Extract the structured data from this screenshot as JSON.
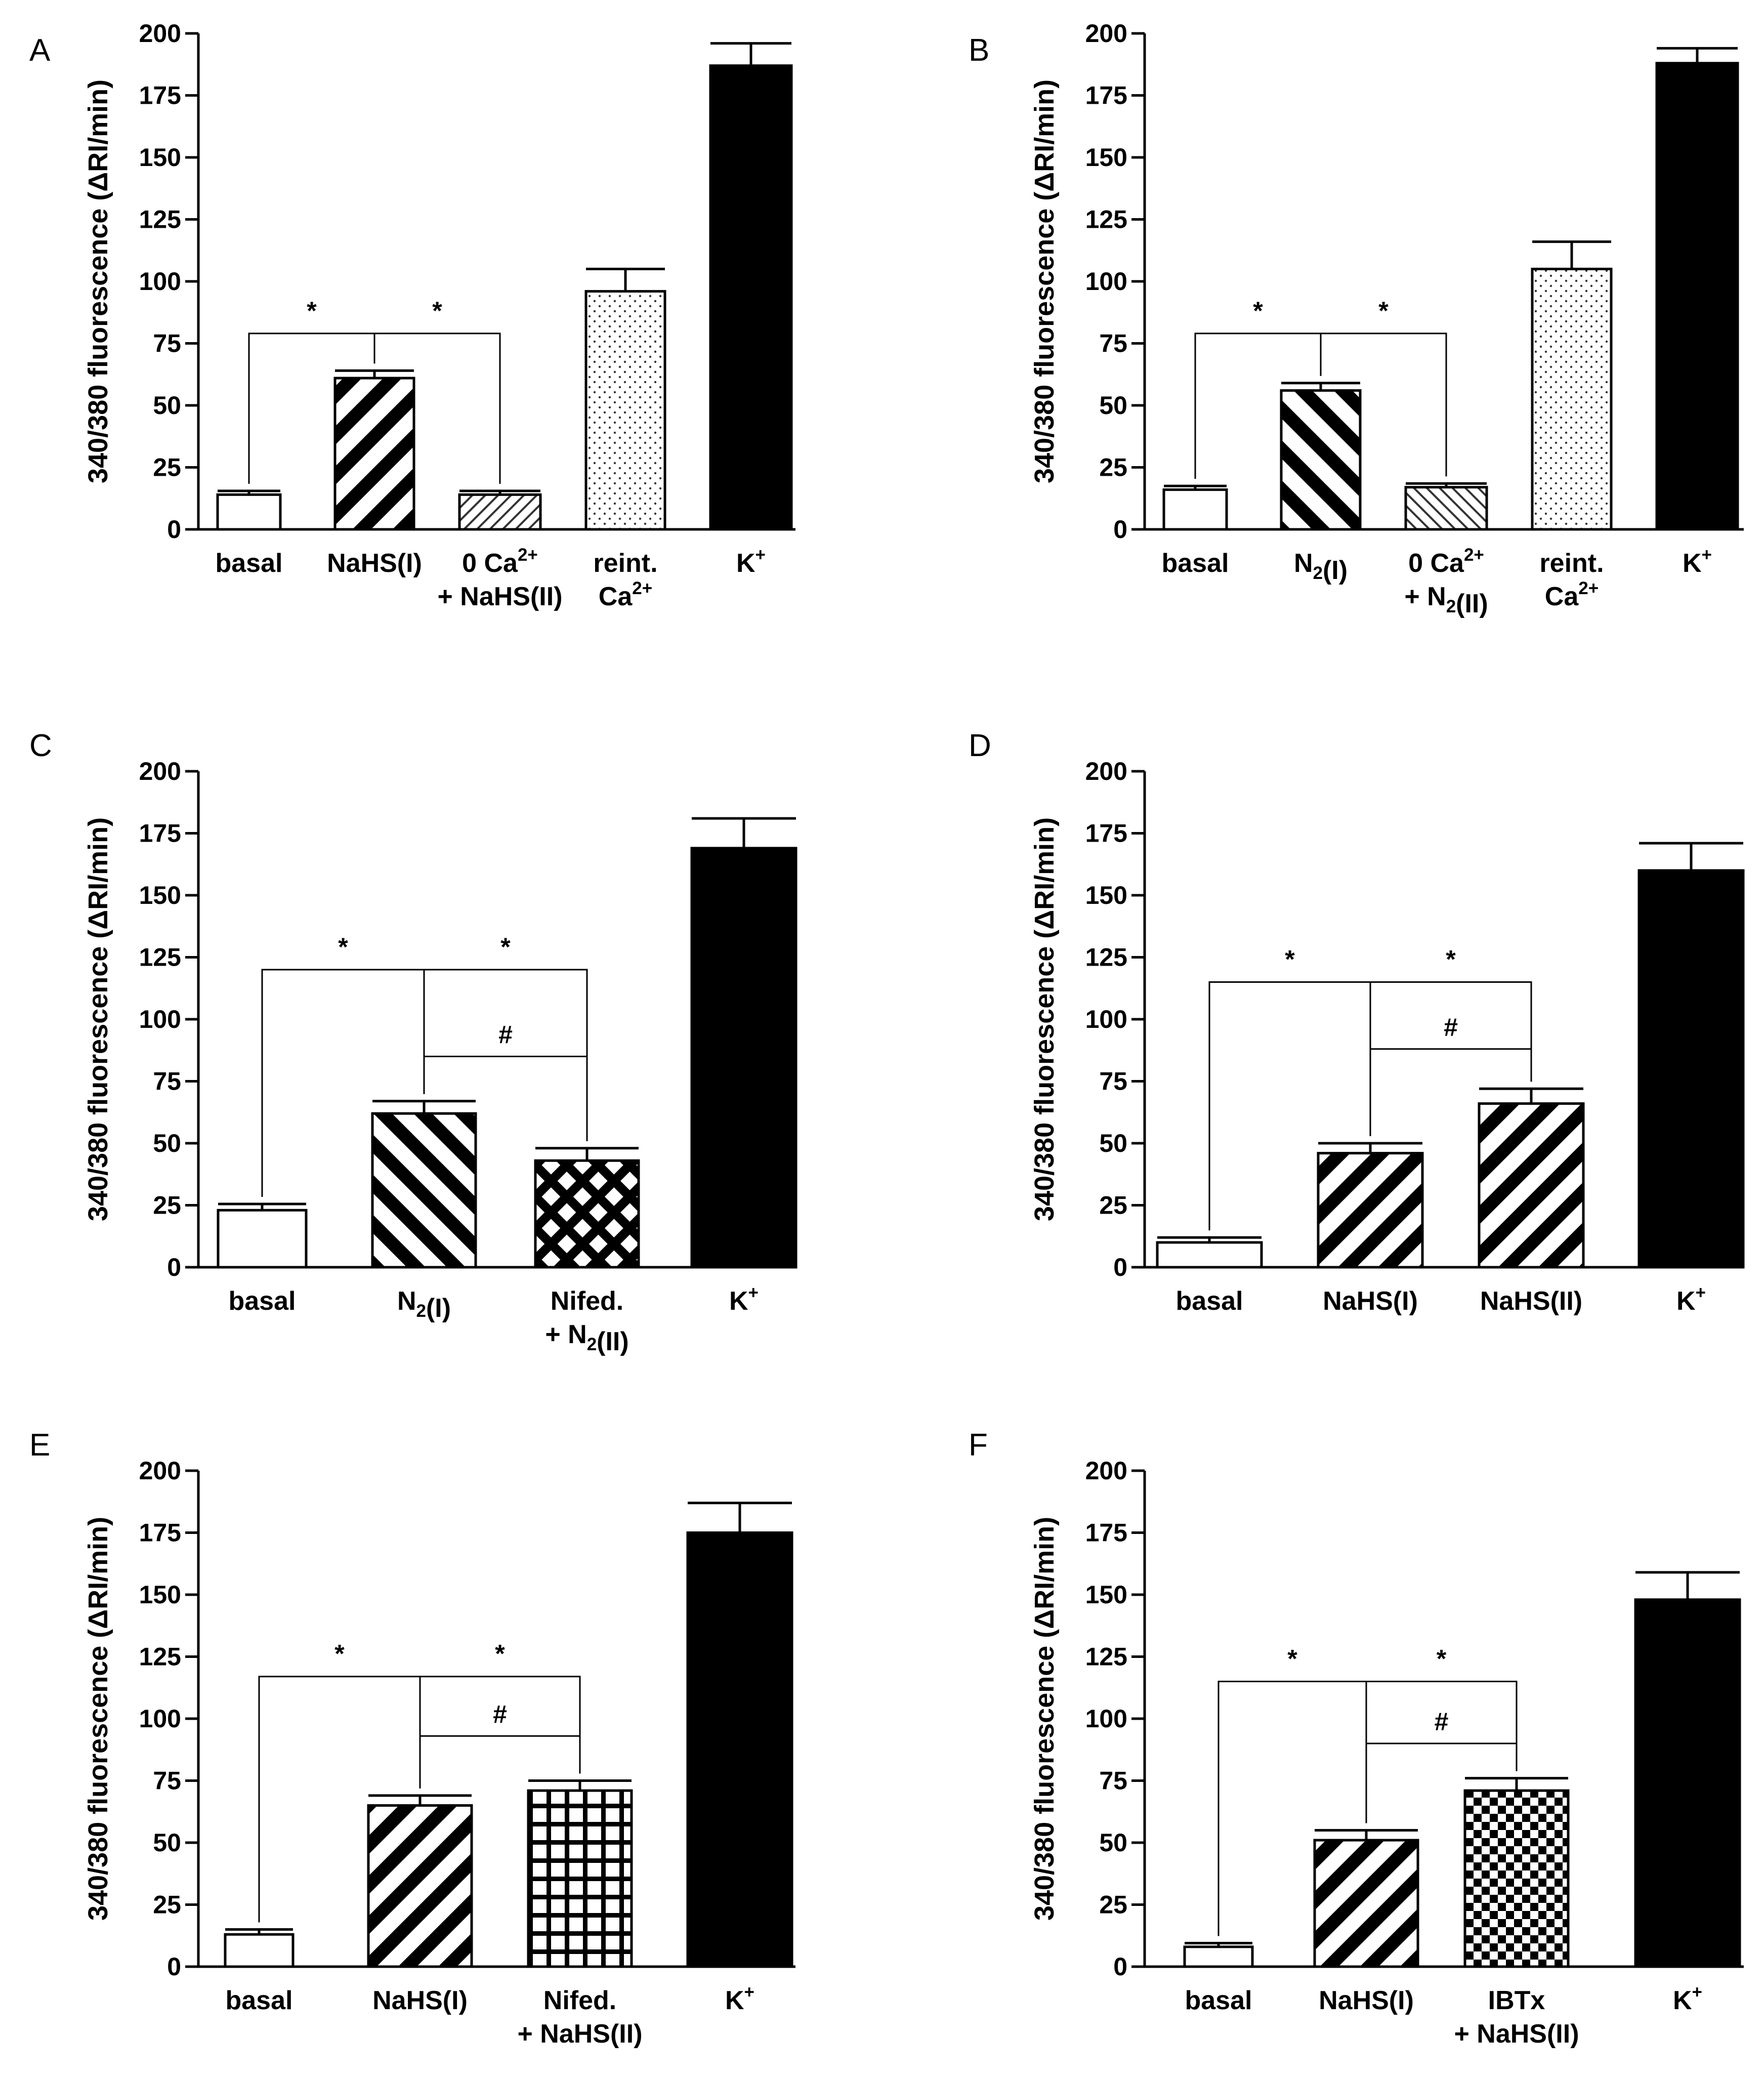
{
  "chart_data": [
    {
      "panel": "A",
      "type": "bar",
      "ylabel": "340/380 fluorescence (ΔRI/min)",
      "ylim": [
        0,
        200
      ],
      "yticks": [
        0,
        25,
        50,
        75,
        100,
        125,
        150,
        175,
        200
      ],
      "categories": [
        {
          "lines": [
            [
              {
                "t": "basal"
              }
            ]
          ]
        },
        {
          "lines": [
            [
              {
                "t": "NaHS(I)"
              }
            ]
          ]
        },
        {
          "lines": [
            [
              {
                "t": "0 Ca"
              },
              {
                "t": "2+",
                "sup": true
              }
            ],
            [
              {
                "t": "+ NaHS(II)"
              }
            ]
          ]
        },
        {
          "lines": [
            [
              {
                "t": "reint."
              }
            ],
            [
              {
                "t": "Ca"
              },
              {
                "t": "2+",
                "sup": true
              }
            ]
          ]
        },
        {
          "lines": [
            [
              {
                "t": "K"
              },
              {
                "t": "+",
                "sup": true
              }
            ]
          ]
        }
      ],
      "values": [
        14,
        61,
        14,
        96,
        187
      ],
      "errors": [
        1.5,
        3,
        1.5,
        9,
        9
      ],
      "patterns": [
        "white",
        "diagBoldBack",
        "diagFineBack",
        "dots",
        "black"
      ],
      "brackets": [
        {
          "from": 0,
          "to": 2,
          "stem": 1,
          "y": 79,
          "labels": [
            "*",
            "*"
          ]
        }
      ]
    },
    {
      "panel": "B",
      "type": "bar",
      "ylabel": "340/380 fluorescence (ΔRI/min)",
      "ylim": [
        0,
        200
      ],
      "yticks": [
        0,
        25,
        50,
        75,
        100,
        125,
        150,
        175,
        200
      ],
      "categories": [
        {
          "lines": [
            [
              {
                "t": "basal"
              }
            ]
          ]
        },
        {
          "lines": [
            [
              {
                "t": "N"
              },
              {
                "t": "2",
                "sub": true
              },
              {
                "t": "(I)"
              }
            ]
          ]
        },
        {
          "lines": [
            [
              {
                "t": "0 Ca"
              },
              {
                "t": "2+",
                "sup": true
              }
            ],
            [
              {
                "t": "+ N"
              },
              {
                "t": "2",
                "sub": true
              },
              {
                "t": "(II)"
              }
            ]
          ]
        },
        {
          "lines": [
            [
              {
                "t": "reint."
              }
            ],
            [
              {
                "t": "Ca"
              },
              {
                "t": "2+",
                "sup": true
              }
            ]
          ]
        },
        {
          "lines": [
            [
              {
                "t": "K"
              },
              {
                "t": "+",
                "sup": true
              }
            ]
          ]
        }
      ],
      "values": [
        16,
        56,
        17,
        105,
        188
      ],
      "errors": [
        1.5,
        3,
        1.5,
        11,
        6
      ],
      "patterns": [
        "white",
        "diagBoldFwd",
        "diagFineFwd",
        "dots",
        "black"
      ],
      "brackets": [
        {
          "from": 0,
          "to": 2,
          "stem": 1,
          "y": 79,
          "labels": [
            "*",
            "*"
          ]
        }
      ]
    },
    {
      "panel": "C",
      "type": "bar",
      "ylabel": "340/380 fluorescence (ΔRI/min)",
      "ylim": [
        0,
        200
      ],
      "yticks": [
        0,
        25,
        50,
        75,
        100,
        125,
        150,
        175,
        200
      ],
      "categories": [
        {
          "lines": [
            [
              {
                "t": "basal"
              }
            ]
          ]
        },
        {
          "lines": [
            [
              {
                "t": "N"
              },
              {
                "t": "2",
                "sub": true
              },
              {
                "t": "(I)"
              }
            ]
          ]
        },
        {
          "lines": [
            [
              {
                "t": "Nifed."
              }
            ],
            [
              {
                "t": "+ N"
              },
              {
                "t": "2",
                "sub": true
              },
              {
                "t": "(II)"
              }
            ]
          ]
        },
        {
          "lines": [
            [
              {
                "t": "K"
              },
              {
                "t": "+",
                "sup": true
              }
            ]
          ]
        }
      ],
      "values": [
        23,
        62,
        43,
        169
      ],
      "errors": [
        2.5,
        5,
        5,
        12
      ],
      "patterns": [
        "white",
        "diagBoldFwd",
        "crossHatch",
        "black"
      ],
      "brackets": [
        {
          "from": 0,
          "to": 2,
          "stem": 1,
          "y": 120,
          "labels": [
            "*",
            "*"
          ]
        },
        {
          "from": 1,
          "to": 2,
          "y": 85,
          "labels": [
            "#"
          ]
        }
      ]
    },
    {
      "panel": "D",
      "type": "bar",
      "ylabel": "340/380 fluorescence (ΔRI/min)",
      "ylim": [
        0,
        200
      ],
      "yticks": [
        0,
        25,
        50,
        75,
        100,
        125,
        150,
        175,
        200
      ],
      "categories": [
        {
          "lines": [
            [
              {
                "t": "basal"
              }
            ]
          ]
        },
        {
          "lines": [
            [
              {
                "t": "NaHS(I)"
              }
            ]
          ]
        },
        {
          "lines": [
            [
              {
                "t": "NaHS(II)"
              }
            ]
          ]
        },
        {
          "lines": [
            [
              {
                "t": "K"
              },
              {
                "t": "+",
                "sup": true
              }
            ]
          ]
        }
      ],
      "values": [
        10,
        46,
        66,
        160
      ],
      "errors": [
        2,
        4,
        6,
        11
      ],
      "patterns": [
        "white",
        "diagBoldBack",
        "diagBoldBack",
        "black"
      ],
      "brackets": [
        {
          "from": 0,
          "to": 2,
          "stem": 1,
          "y": 115,
          "labels": [
            "*",
            "*"
          ]
        },
        {
          "from": 1,
          "to": 2,
          "y": 88,
          "labels": [
            "#"
          ]
        }
      ]
    },
    {
      "panel": "E",
      "type": "bar",
      "ylabel": "340/380 fluorescence (ΔRI/min)",
      "ylim": [
        0,
        200
      ],
      "yticks": [
        0,
        25,
        50,
        75,
        100,
        125,
        150,
        175,
        200
      ],
      "categories": [
        {
          "lines": [
            [
              {
                "t": "basal"
              }
            ]
          ]
        },
        {
          "lines": [
            [
              {
                "t": "NaHS(I)"
              }
            ]
          ]
        },
        {
          "lines": [
            [
              {
                "t": "Nifed."
              }
            ],
            [
              {
                "t": "+ NaHS(II)"
              }
            ]
          ]
        },
        {
          "lines": [
            [
              {
                "t": "K"
              },
              {
                "t": "+",
                "sup": true
              }
            ]
          ]
        }
      ],
      "values": [
        13,
        65,
        71,
        175
      ],
      "errors": [
        2,
        4,
        4,
        12
      ],
      "patterns": [
        "white",
        "diagBoldBack",
        "grid",
        "black"
      ],
      "brackets": [
        {
          "from": 0,
          "to": 2,
          "stem": 1,
          "y": 117,
          "labels": [
            "*",
            "*"
          ]
        },
        {
          "from": 1,
          "to": 2,
          "y": 93,
          "labels": [
            "#"
          ]
        }
      ]
    },
    {
      "panel": "F",
      "type": "bar",
      "ylabel": "340/380 fluorescence (ΔRI/min)",
      "ylim": [
        0,
        200
      ],
      "yticks": [
        0,
        25,
        50,
        75,
        100,
        125,
        150,
        175,
        200
      ],
      "categories": [
        {
          "lines": [
            [
              {
                "t": "basal"
              }
            ]
          ]
        },
        {
          "lines": [
            [
              {
                "t": "NaHS(I)"
              }
            ]
          ]
        },
        {
          "lines": [
            [
              {
                "t": "IBTx"
              }
            ],
            [
              {
                "t": "+ NaHS(II)"
              }
            ]
          ]
        },
        {
          "lines": [
            [
              {
                "t": "K"
              },
              {
                "t": "+",
                "sup": true
              }
            ]
          ]
        }
      ],
      "values": [
        8,
        51,
        71,
        148
      ],
      "errors": [
        1.5,
        4,
        5,
        11
      ],
      "patterns": [
        "white",
        "diagBoldBack",
        "checker",
        "black"
      ],
      "brackets": [
        {
          "from": 0,
          "to": 2,
          "stem": 1,
          "y": 115,
          "labels": [
            "*",
            "*"
          ]
        },
        {
          "from": 1,
          "to": 2,
          "y": 90,
          "labels": [
            "#"
          ]
        }
      ]
    }
  ]
}
